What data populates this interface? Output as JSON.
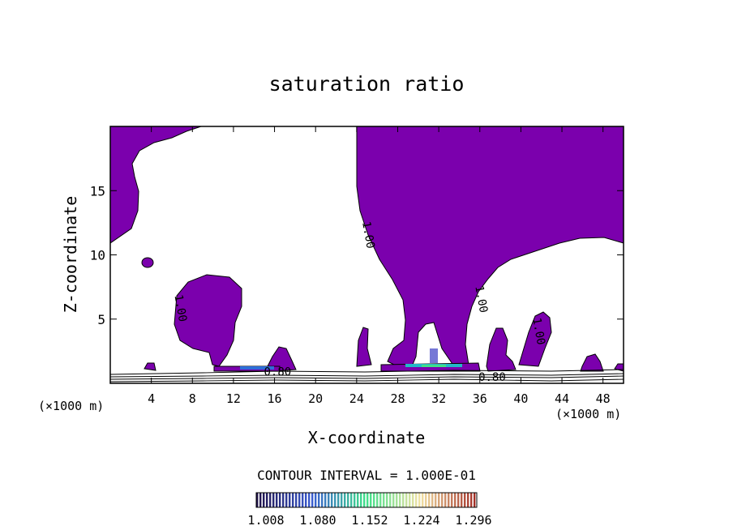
{
  "chart_data": {
    "type": "heatmap",
    "title": "saturation ratio",
    "xlabel": "X-coordinate",
    "ylabel": "Z-coordinate",
    "x_unit_left": "(×1000 m)",
    "x_unit_right": "(×1000 m)",
    "xlim": [
      0,
      50
    ],
    "ylim": [
      0,
      20
    ],
    "x_ticks": [
      4,
      8,
      12,
      16,
      20,
      24,
      28,
      32,
      36,
      40,
      44,
      48
    ],
    "y_ticks": [
      5,
      10,
      15
    ],
    "contour_interval_text": "CONTOUR INTERVAL = 1.000E-01",
    "contour_labels": [
      {
        "text": "1.00",
        "x": 24.8,
        "z": 11.5
      },
      {
        "text": "1.00",
        "x": 6.5,
        "z": 5.8
      },
      {
        "text": "1.00",
        "x": 35.8,
        "z": 6.5
      },
      {
        "text": "1.00",
        "x": 41.4,
        "z": 4.0
      },
      {
        "text": "0.80",
        "x": 16.3,
        "z": 0.6
      },
      {
        "text": "0.80",
        "x": 37.2,
        "z": 0.2
      }
    ],
    "colorbar": {
      "colors": [
        "#20124a",
        "#3a5bd0",
        "#3fe08a",
        "#f2e2a4",
        "#a33028"
      ],
      "tick_labels": [
        "1.008",
        "1.080",
        "1.152",
        "1.224",
        "1.296"
      ]
    },
    "regions": [
      {
        "name": "upper-left-supersaturated",
        "color": "#7b00ad"
      },
      {
        "name": "central-column-supersaturated",
        "color": "#7b00ad"
      },
      {
        "name": "left-cloud-blob",
        "color": "#7b00ad"
      },
      {
        "name": "cloud-base-band",
        "color": "#7b00ad"
      }
    ]
  }
}
